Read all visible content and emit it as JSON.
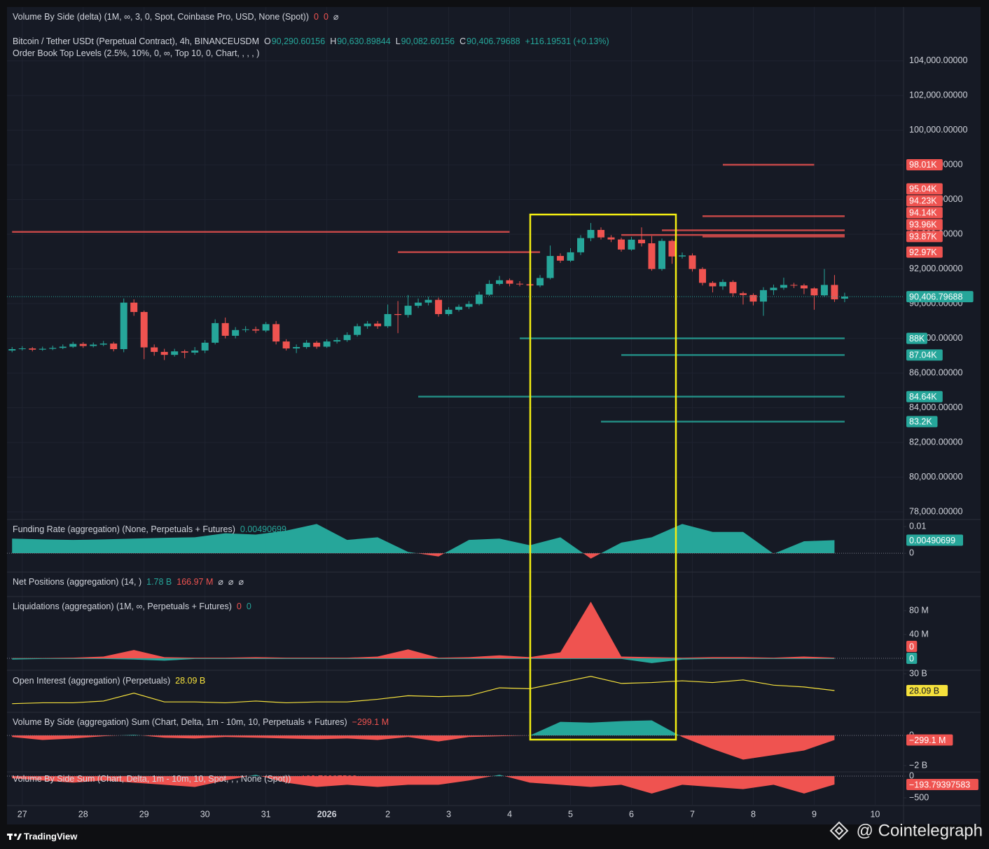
{
  "chart_data": [
    {
      "type": "candlestick",
      "legend": [
        [
          {
            "text": "Volume By Side (delta) (1M, ∞, 3, 0, Spot, Coinbase Pro, USD, None (Spot))",
            "color": "#d1d4dc"
          },
          {
            "text": "0",
            "color": "#ef5350"
          },
          {
            "text": "0",
            "color": "#ef5350"
          },
          {
            "text": "⌀",
            "color": "#d1d4dc"
          }
        ],
        [
          {
            "text": "Bitcoin / Tether USDt (Perpetual Contract), 4h, BINANCEUSDM",
            "color": "#d1d4dc"
          },
          {
            "text": "O",
            "color": "#d1d4dc"
          },
          {
            "text": "90,290.60156",
            "color": "#26a69a"
          },
          {
            "text": "H",
            "color": "#d1d4dc"
          },
          {
            "text": "90,630.89844",
            "color": "#26a69a"
          },
          {
            "text": "L",
            "color": "#d1d4dc"
          },
          {
            "text": "90,082.60156",
            "color": "#26a69a"
          },
          {
            "text": "C",
            "color": "#d1d4dc"
          },
          {
            "text": "90,406.79688",
            "color": "#26a69a"
          },
          {
            "text": "+116.19531 (+0.13%)",
            "color": "#26a69a"
          }
        ],
        [
          {
            "text": "Order Book Top Levels (2.5%, 10%, 0, ∞, Top 10, 0, Chart, , , , )",
            "color": "#d1d4dc"
          }
        ]
      ],
      "up_color": "#26a69a",
      "down_color": "#ef5350",
      "grid": true,
      "open": [
        87300,
        87380,
        87420,
        87350,
        87400,
        87450,
        87520,
        87680,
        87560,
        87640,
        87700,
        87380,
        90060,
        89520,
        87480,
        87220,
        87050,
        87250,
        87180,
        87300,
        87750,
        88880,
        88150,
        88480,
        88520,
        88450,
        88820,
        87820,
        87420,
        87500,
        87750,
        87520,
        87820,
        87900,
        88200,
        88700,
        88850,
        88700,
        89400,
        89350,
        89880,
        90060,
        90220,
        89400,
        89650,
        89820,
        89980,
        90520,
        91140,
        91350,
        91150,
        91120,
        91050,
        91480,
        92750,
        92480,
        92960,
        93780,
        94250,
        93820,
        93700,
        93120,
        93690,
        93480,
        92000,
        93620,
        92720,
        92780,
        92000,
        91200,
        91000,
        91250,
        90600,
        90500,
        90120,
        90780,
        90920,
        91080,
        91050,
        90880,
        90480,
        91080,
        90290.60156
      ],
      "high": [
        87500,
        87550,
        87500,
        87520,
        87580,
        87650,
        87800,
        87780,
        87760,
        87850,
        87800,
        90300,
        90250,
        89600,
        87650,
        87400,
        87400,
        87350,
        87500,
        87900,
        89100,
        89200,
        88650,
        88700,
        88680,
        88950,
        89000,
        87950,
        87650,
        87900,
        87850,
        87950,
        88050,
        88350,
        88850,
        89000,
        89000,
        89950,
        90150,
        90500,
        90300,
        90400,
        90350,
        89800,
        89950,
        90150,
        90700,
        91350,
        91600,
        91450,
        91300,
        91250,
        91650,
        93350,
        92900,
        93200,
        93950,
        94650,
        94400,
        93950,
        93800,
        93850,
        94400,
        93900,
        93750,
        93700,
        92950,
        92900,
        92100,
        91300,
        91400,
        91350,
        90700,
        90600,
        90950,
        91100,
        91500,
        91200,
        91150,
        90950,
        92000,
        91650,
        90630.89844
      ],
      "low": [
        87200,
        87300,
        87250,
        87280,
        87320,
        87380,
        87450,
        87450,
        87480,
        87550,
        87250,
        87200,
        89300,
        86800,
        87000,
        86750,
        86950,
        86850,
        87050,
        87150,
        87650,
        88000,
        88000,
        88350,
        88300,
        88350,
        87650,
        87300,
        87150,
        87400,
        87400,
        87450,
        87700,
        87800,
        88100,
        88550,
        88550,
        88600,
        88300,
        89200,
        89750,
        89900,
        89250,
        89300,
        89550,
        89700,
        89900,
        90450,
        91050,
        91000,
        91000,
        90900,
        90950,
        91400,
        92350,
        92400,
        92800,
        93600,
        93700,
        93550,
        93000,
        93050,
        93300,
        91900,
        91900,
        92300,
        92600,
        91850,
        91050,
        90650,
        90800,
        90400,
        89950,
        89900,
        89300,
        90500,
        90800,
        90900,
        90550,
        89650,
        90400,
        90100,
        90082.60156
      ],
      "close": [
        87380,
        87420,
        87350,
        87400,
        87450,
        87520,
        87680,
        87560,
        87640,
        87700,
        87380,
        90060,
        89520,
        87480,
        87220,
        87050,
        87250,
        87180,
        87300,
        87750,
        88880,
        88150,
        88480,
        88520,
        88450,
        88820,
        87820,
        87420,
        87500,
        87750,
        87520,
        87820,
        87900,
        88200,
        88700,
        88850,
        88700,
        89400,
        89350,
        89880,
        90060,
        90220,
        89400,
        89650,
        89820,
        89980,
        90520,
        91140,
        91350,
        91150,
        91120,
        91050,
        91480,
        92750,
        92480,
        92960,
        93780,
        94250,
        93820,
        93700,
        93120,
        93690,
        93480,
        92000,
        93620,
        92720,
        92780,
        92000,
        91200,
        91000,
        91250,
        90600,
        90500,
        90120,
        90780,
        90920,
        91080,
        91050,
        90880,
        90480,
        91080,
        90250,
        90406.79688
      ],
      "xlim": [
        -0.5,
        87.8
      ],
      "xticks": [
        {
          "value": 1,
          "label": "27"
        },
        {
          "value": 7,
          "label": "28"
        },
        {
          "value": 13,
          "label": "29"
        },
        {
          "value": 19,
          "label": "30"
        },
        {
          "value": 25,
          "label": "31"
        },
        {
          "value": 31,
          "label": "2026"
        },
        {
          "value": 37,
          "label": "2"
        },
        {
          "value": 43,
          "label": "3"
        },
        {
          "value": 49,
          "label": "4"
        },
        {
          "value": 55,
          "label": "5"
        },
        {
          "value": 61,
          "label": "6"
        },
        {
          "value": 67,
          "label": "7"
        },
        {
          "value": 73,
          "label": "8"
        },
        {
          "value": 79,
          "label": "9"
        },
        {
          "value": 85,
          "label": "10"
        }
      ],
      "ylim": [
        77600,
        107100
      ],
      "yticks": [
        {
          "value": 104000,
          "label": "104,000.00000"
        },
        {
          "value": 102000,
          "label": "102,000.00000"
        },
        {
          "value": 100000,
          "label": "100,000.00000"
        },
        {
          "value": 98000,
          "label": "98,000.00000"
        },
        {
          "value": 96000,
          "label": "96,000.00000"
        },
        {
          "value": 94000,
          "label": "94,000.00000"
        },
        {
          "value": 92000,
          "label": "92,000.00000"
        },
        {
          "value": 90000,
          "label": "90,000.00000"
        },
        {
          "value": 88000,
          "label": "88,000.00000"
        },
        {
          "value": 86000,
          "label": "86,000.00000"
        },
        {
          "value": 84000,
          "label": "84,000.00000"
        },
        {
          "value": 82000,
          "label": "82,000.00000"
        },
        {
          "value": 80000,
          "label": "80,000.00000"
        },
        {
          "value": 78000,
          "label": "78,000.00000"
        }
      ],
      "price_badges": [
        {
          "value": 98010,
          "label": "98.01K",
          "color": "#ef5350",
          "from": 70,
          "to": 79
        },
        {
          "value": 95040,
          "label": "95.04K",
          "color": "#ef5350",
          "from": 68,
          "to": 82
        },
        {
          "value": 94230,
          "label": "94.23K",
          "color": "#ef5350",
          "from": 64,
          "to": 82
        },
        {
          "value": 94140,
          "label": "94.14K",
          "color": "#ef5350",
          "from": 0,
          "to": 49
        },
        {
          "value": 93960,
          "label": "93.96K",
          "color": "#ef5350",
          "from": 60,
          "to": 82
        },
        {
          "value": 93870,
          "label": "93.87K",
          "color": "#ef5350",
          "from": 68,
          "to": 82
        },
        {
          "value": 92970,
          "label": "92.97K",
          "color": "#ef5350",
          "from": 38,
          "to": 52
        },
        {
          "value": 88000,
          "label": "88K",
          "color": "#26a69a",
          "from": 50,
          "to": 82
        },
        {
          "value": 87040,
          "label": "87.04K",
          "color": "#26a69a",
          "from": 60,
          "to": 82
        },
        {
          "value": 84640,
          "label": "84.64K",
          "color": "#26a69a",
          "from": 40,
          "to": 82
        },
        {
          "value": 83200,
          "label": "83.2K",
          "color": "#26a69a",
          "from": 58,
          "to": 82
        }
      ],
      "last": {
        "value": 90406.79688,
        "label": "90,406.79688"
      },
      "last_color": "#26a69a"
    },
    {
      "type": "area",
      "legend": [
        [
          {
            "text": "Funding Rate (aggregation) (None, Perpetuals + Futures)",
            "color": "#d1d4dc"
          },
          {
            "text": "0.00490699",
            "color": "#26a69a"
          }
        ]
      ],
      "up_color": "#26a69a",
      "down_color": "#ef5350",
      "x": [
        0,
        3,
        6,
        9,
        12,
        15,
        18,
        21,
        24,
        27,
        30,
        33,
        36,
        39,
        42,
        45,
        48,
        51,
        54,
        57,
        60,
        63,
        66,
        69,
        72,
        75,
        78,
        81
      ],
      "values": [
        0.0055,
        0.0052,
        0.005,
        0.0052,
        0.0055,
        0.0058,
        0.006,
        0.0075,
        0.007,
        0.0085,
        0.011,
        0.005,
        0.006,
        0.0005,
        -0.0012,
        0.005,
        0.0055,
        0.003,
        0.006,
        -0.002,
        0.004,
        0.006,
        0.011,
        0.008,
        0.008,
        -0.0002,
        0.0045,
        0.0049
      ],
      "ylim": [
        -0.0068,
        0.0124
      ],
      "yticks": [
        0.01,
        0
      ],
      "last": 0.00490699,
      "last_color": "#26a69a"
    },
    {
      "type": "empty",
      "legend": [
        [
          {
            "text": "Net Positions (aggregation) (14, )",
            "color": "#d1d4dc"
          },
          {
            "text": "1.78 B",
            "color": "#26a69a"
          },
          {
            "text": "166.97 M",
            "color": "#ef5350"
          },
          {
            "text": "⌀",
            "color": "#d1d4dc"
          },
          {
            "text": "⌀",
            "color": "#d1d4dc"
          },
          {
            "text": "⌀",
            "color": "#d1d4dc"
          }
        ]
      ]
    },
    {
      "type": "mirror",
      "legend": [
        [
          {
            "text": "Liquidations (aggregation) (1M, ∞, Perpetuals + Futures)",
            "color": "#d1d4dc"
          },
          {
            "text": "0",
            "color": "#ef5350"
          },
          {
            "text": "0",
            "color": "#26a69a"
          }
        ]
      ],
      "x": [
        0,
        3,
        6,
        9,
        12,
        15,
        18,
        21,
        24,
        27,
        30,
        33,
        36,
        39,
        42,
        45,
        48,
        51,
        54,
        57,
        60,
        63,
        66,
        69,
        72,
        75,
        78,
        81
      ],
      "series": [
        {
          "color": "#ef5350",
          "values": [
            500000,
            500000,
            1000000,
            3000000,
            14000000,
            2000000,
            1000000,
            1000000,
            2000000,
            1000000,
            1000000,
            1000000,
            3000000,
            15000000,
            1000000,
            2000000,
            5000000,
            2000000,
            10000000,
            95000000,
            3000000,
            2000000,
            1000000,
            2000000,
            2000000,
            1000000,
            3000000,
            1000000
          ],
          "last": 0
        },
        {
          "color": "#26a69a",
          "values": [
            -2000000,
            -1000000,
            -1000000,
            -1000000,
            -2000000,
            -4000000,
            -1000000,
            -1000000,
            -1000000,
            -1000000,
            -1000000,
            -1000000,
            -1000000,
            -1000000,
            -1000000,
            -1000000,
            -1000000,
            -1000000,
            -1000000,
            -1000000,
            -1000000,
            -8000000,
            -2000000,
            -1000000,
            -1000000,
            -1000000,
            -1000000,
            -1000000
          ],
          "last": 0
        }
      ],
      "ylim": [
        -18800000,
        102400000
      ],
      "yticks": [
        {
          "value": 80000000,
          "label": "80 M"
        },
        {
          "value": 40000000,
          "label": "40 M"
        }
      ]
    },
    {
      "type": "line",
      "legend": [
        [
          {
            "text": "Open Interest (aggregation) (Perpetuals)",
            "color": "#d1d4dc"
          },
          {
            "text": "28.09 B",
            "color": "#f5e13c"
          }
        ]
      ],
      "color": "#f5e13c",
      "x": [
        0,
        3,
        6,
        9,
        12,
        15,
        18,
        21,
        24,
        27,
        30,
        33,
        36,
        39,
        42,
        45,
        48,
        51,
        54,
        57,
        60,
        63,
        66,
        69,
        72,
        75,
        78,
        81
      ],
      "values": [
        26600000000,
        26700000000,
        26700000000,
        26900000000,
        27800000000,
        26800000000,
        26800000000,
        26700000000,
        26900000000,
        26700000000,
        26800000000,
        26800000000,
        27100000000,
        27500000000,
        27400000000,
        27500000000,
        28400000000,
        28300000000,
        29000000000,
        29700000000,
        28900000000,
        29000000000,
        29200000000,
        29000000000,
        29300000000,
        28700000000,
        28500000000,
        28090000000
      ],
      "ylim": [
        25700000000,
        30320000000
      ],
      "yticks": [
        {
          "value": 30000000000,
          "label": "30 B"
        }
      ],
      "last": {
        "value": 28090000000,
        "label": "28.09 B"
      },
      "last_color": "#f5e13c"
    },
    {
      "type": "area",
      "legend": [
        [
          {
            "text": "Volume By Side (aggregation) Sum (Chart, Delta, 1m - 10m, 10, Perpetuals + Futures)",
            "color": "#d1d4dc"
          },
          {
            "text": "−299.1 M",
            "color": "#ef5350"
          }
        ]
      ],
      "up_color": "#26a69a",
      "down_color": "#ef5350",
      "x": [
        0,
        3,
        6,
        9,
        12,
        15,
        18,
        21,
        24,
        27,
        30,
        33,
        36,
        39,
        42,
        45,
        48,
        51,
        54,
        57,
        60,
        63,
        66,
        69,
        72,
        75,
        78,
        81
      ],
      "values": [
        -100000000,
        -300000000,
        -200000000,
        -50000000,
        50000000,
        -150000000,
        -200000000,
        -100000000,
        -150000000,
        -200000000,
        -250000000,
        -200000000,
        -300000000,
        -100000000,
        -400000000,
        -100000000,
        -50000000,
        0,
        900000000,
        850000000,
        950000000,
        1000000000,
        -100000000,
        -900000000,
        -1600000000,
        -1300000000,
        -1000000000,
        -299100000
      ],
      "ylim": [
        -2370000000,
        1490000000
      ],
      "yticks": [
        0,
        {
          "value": -2000000000,
          "label": "−2 B"
        }
      ],
      "last": {
        "value": -299100000,
        "label": "−299.1 M"
      },
      "last_color": "#ef5350"
    },
    {
      "type": "area",
      "legend": [
        [
          {
            "text": "Volume By Side Sum (Chart, Delta, 1m - 10m, 10, Spot, , , None (Spot))",
            "color": "#d1d4dc"
          },
          {
            "text": "−193.79397583",
            "color": "#ef5350"
          }
        ]
      ],
      "up_color": "#26a69a",
      "down_color": "#ef5350",
      "x": [
        0,
        3,
        6,
        9,
        12,
        15,
        18,
        21,
        24,
        27,
        30,
        33,
        36,
        39,
        42,
        45,
        48,
        51,
        54,
        57,
        60,
        63,
        66,
        69,
        72,
        75,
        78,
        81
      ],
      "values": [
        -50,
        -100,
        -150,
        -100,
        -150,
        -200,
        -250,
        -100,
        30,
        -150,
        -250,
        -200,
        -250,
        -200,
        -200,
        -100,
        30,
        -150,
        -200,
        -250,
        -200,
        -400,
        -200,
        -250,
        -300,
        -200,
        -400,
        -193.79397583
      ],
      "ylim": [
        -661,
        81
      ],
      "yticks": [
        0,
        {
          "value": -500,
          "label": "−500"
        }
      ],
      "last": {
        "value": -193.79397583,
        "label": "−193.79397583"
      },
      "last_color": "#ef5350"
    }
  ],
  "footer": {
    "brand": "TradingView",
    "watermark": "@ Cointelegraph"
  }
}
